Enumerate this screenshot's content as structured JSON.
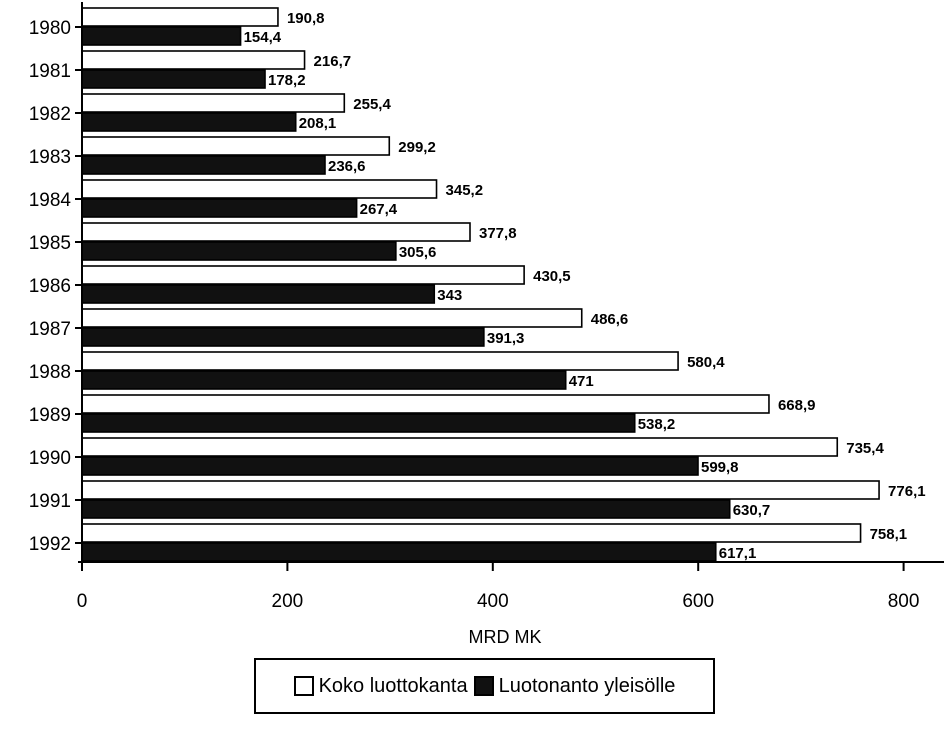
{
  "chart_data": {
    "type": "bar",
    "orientation": "horizontal",
    "categories": [
      "1980",
      "1981",
      "1982",
      "1983",
      "1984",
      "1985",
      "1986",
      "1987",
      "1988",
      "1989",
      "1990",
      "1991",
      "1992"
    ],
    "series": [
      {
        "name": "Koko luottokanta",
        "color": "#ffffff",
        "values": [
          190.8,
          216.7,
          255.4,
          299.2,
          345.2,
          377.8,
          430.5,
          486.6,
          580.4,
          668.9,
          735.4,
          776.1,
          758.1
        ],
        "labels": [
          "190,8",
          "216,7",
          "255,4",
          "299,2",
          "345,2",
          "377,8",
          "430,5",
          "486,6",
          "580,4",
          "668,9",
          "735,4",
          "776,1",
          "758,1"
        ]
      },
      {
        "name": "Luotonanto yleisölle",
        "color": "#111111",
        "values": [
          154.4,
          178.2,
          208.1,
          236.6,
          267.4,
          305.6,
          343,
          391.3,
          471,
          538.2,
          599.8,
          630.7,
          617.1
        ],
        "labels": [
          "154,4",
          "178,2",
          "208,1",
          "236,6",
          "267,4",
          "305,6",
          "343",
          "391,3",
          "471",
          "538,2",
          "599,8",
          "630,7",
          "617,1"
        ]
      }
    ],
    "xlabel": "MRD MK",
    "ylabel": "",
    "xlim": [
      0,
      840
    ],
    "xticks": [
      0,
      200,
      400,
      600,
      800
    ],
    "xtick_labels": [
      "0",
      "200",
      "400",
      "600",
      "800"
    ],
    "grid": false,
    "legend_position": "bottom-center"
  }
}
